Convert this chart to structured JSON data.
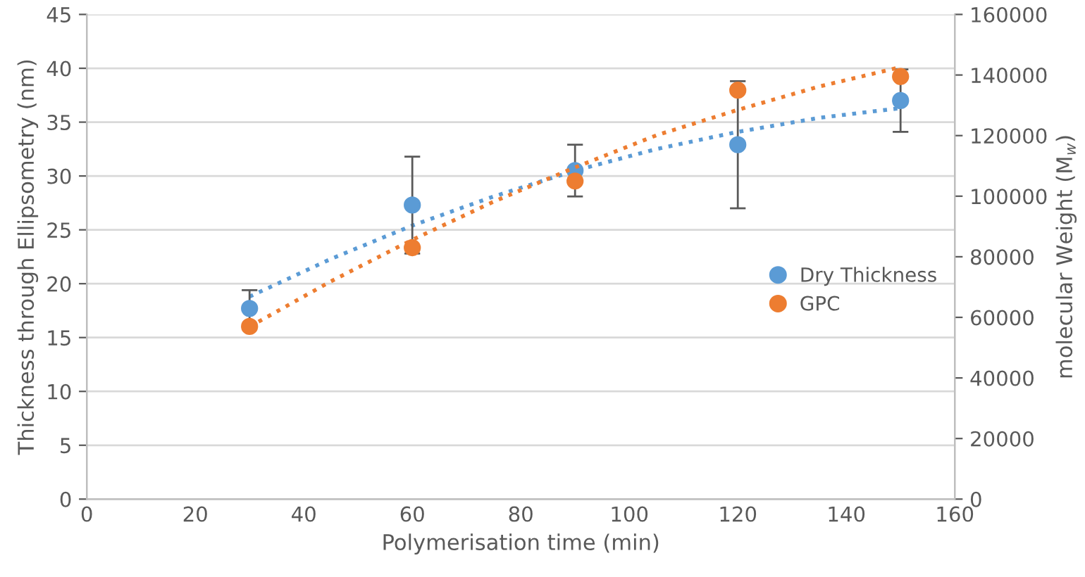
{
  "chart_data": {
    "type": "scatter",
    "xlabel": "Polymerisation time (min)",
    "ylabel": "Thickness through Ellipsometry (nm)",
    "y2label": "molecular Weight (M$_{w}$)",
    "xlim": [
      0,
      160
    ],
    "xticks": [
      0,
      20,
      40,
      60,
      80,
      100,
      120,
      140,
      160
    ],
    "ylim": [
      0,
      45
    ],
    "yticks": [
      0,
      5,
      10,
      15,
      20,
      25,
      30,
      35,
      40,
      45
    ],
    "y2lim": [
      0,
      160000
    ],
    "y2ticks": [
      0,
      20000,
      40000,
      60000,
      80000,
      100000,
      120000,
      140000,
      160000
    ],
    "grid": "y",
    "legend": "right",
    "series": [
      {
        "name": "Dry Thickness",
        "marker": "circle",
        "color": "#5b9bd5",
        "x": [
          30,
          60,
          90,
          120,
          150
        ],
        "values": [
          17.7,
          27.3,
          30.5,
          32.9,
          37.0
        ],
        "errors": [
          1.7,
          4.5,
          2.4,
          5.9,
          2.9
        ]
      },
      {
        "name": "GPC",
        "marker": "circle",
        "color": "#ed7d31",
        "axis": "y2",
        "x": [
          30,
          60,
          90,
          120,
          150
        ],
        "values": [
          57000,
          83000,
          105000,
          135000,
          139500
        ]
      },
      {
        "type": "line",
        "marker": "none",
        "line_style": "dotted",
        "color": "#5b9bd5",
        "x": [
          30,
          45,
          60,
          75,
          90,
          105,
          120,
          135,
          150
        ],
        "values": [
          18.8,
          22.3,
          25.4,
          28.1,
          30.5,
          32.5,
          34.1,
          35.4,
          36.3
        ]
      },
      {
        "type": "line",
        "marker": "none",
        "line_style": "dotted",
        "color": "#ed7d31",
        "axis": "y2",
        "x": [
          30,
          45,
          60,
          75,
          90,
          105,
          120,
          135,
          150
        ],
        "values": [
          56900,
          71900,
          85600,
          98200,
          109500,
          120100,
          128500,
          136200,
          142600
        ]
      }
    ]
  }
}
